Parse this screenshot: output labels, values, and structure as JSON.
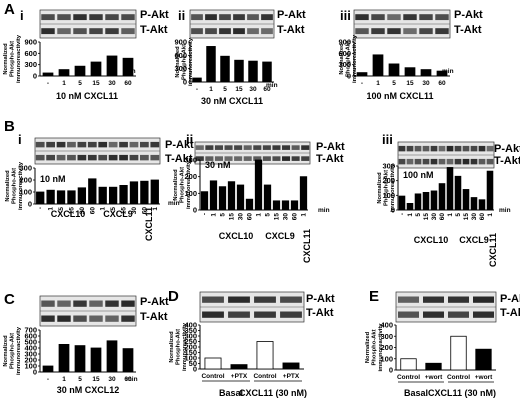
{
  "blot_labels": {
    "phospho": "P-Akt",
    "total": "T-Akt"
  },
  "y_axis_label_lines": [
    "Normalized",
    "Phospho-Akt",
    "immunoreactivity"
  ],
  "unit_label": "min",
  "panels": [
    {
      "letter": "A",
      "numeral": "i",
      "chart_data": {
        "type": "bar",
        "title": "",
        "xlabel": "10 nM CXCL11",
        "ylabel": "Normalized Phospho-Akt immunoreactivity",
        "ylim": [
          0,
          900
        ],
        "yticks": [
          0,
          300,
          600,
          900
        ],
        "categories": [
          "-",
          "1",
          "5",
          "15",
          "30",
          "60"
        ],
        "values": [
          80,
          170,
          260,
          370,
          530,
          470
        ],
        "fill": "black"
      }
    },
    {
      "letter": "",
      "numeral": "ii",
      "chart_data": {
        "type": "bar",
        "title": "",
        "xlabel": "30 nM CXCL11",
        "ylabel": "Normalized Phospho-Akt immunoreactivity",
        "ylim": [
          0,
          900
        ],
        "yticks": [
          0,
          300,
          600,
          900
        ],
        "categories": [
          "-",
          "1",
          "5",
          "15",
          "30",
          "60"
        ],
        "values": [
          90,
          800,
          580,
          490,
          470,
          450
        ],
        "fill": "black"
      }
    },
    {
      "letter": "",
      "numeral": "iii",
      "chart_data": {
        "type": "bar",
        "title": "",
        "xlabel": "100 nM CXCL11",
        "ylabel": "Normalized Phospho-Akt immunoreactivity",
        "ylim": [
          0,
          900
        ],
        "yticks": [
          0,
          300,
          600,
          900
        ],
        "categories": [
          "-",
          "1",
          "5",
          "15",
          "30",
          "60"
        ],
        "values": [
          90,
          560,
          320,
          220,
          170,
          130
        ],
        "fill": "black"
      }
    },
    {
      "letter": "B",
      "numeral": "i",
      "conc_label": "10 nM",
      "chart_data": {
        "type": "bar",
        "title": "",
        "ylabel": "Normalized Phospho-Akt immunoreactivity",
        "ylim": [
          0,
          300
        ],
        "yticks": [
          0,
          100,
          200,
          300
        ],
        "categories": [
          "-",
          "1",
          "5",
          "15",
          "30",
          "60",
          "1",
          "5",
          "15",
          "30",
          "60",
          "1"
        ],
        "group_labels": [
          "CXCL10",
          "CXCL9",
          "CXCL11"
        ],
        "values": [
          100,
          115,
          110,
          110,
          135,
          210,
          140,
          140,
          155,
          185,
          190,
          200
        ],
        "fill": "black"
      }
    },
    {
      "letter": "",
      "numeral": "ii",
      "conc_label": "30 nM",
      "chart_data": {
        "type": "bar",
        "title": "",
        "ylabel": "Normalized Phospho-Akt immunoreactivity",
        "ylim": [
          0,
          300
        ],
        "yticks": [
          0,
          100,
          200,
          300
        ],
        "categories": [
          "-",
          "1",
          "5",
          "15",
          "30",
          "60",
          "1",
          "5",
          "15",
          "30",
          "60",
          "1"
        ],
        "group_labels": [
          "CXCL10",
          "CXCL9",
          "CXCL11"
        ],
        "values": [
          110,
          175,
          140,
          170,
          150,
          65,
          300,
          150,
          55,
          55,
          55,
          200
        ],
        "fill": "black"
      }
    },
    {
      "letter": "",
      "numeral": "iii",
      "conc_label": "100 nM",
      "chart_data": {
        "type": "bar",
        "title": "",
        "ylabel": "Normalized Phospho-Akt immunoreactivity",
        "ylim": [
          0,
          300
        ],
        "yticks": [
          0,
          100,
          200,
          300
        ],
        "categories": [
          "-",
          "1",
          "5",
          "15",
          "30",
          "60",
          "1",
          "5",
          "15",
          "30",
          "60",
          "1"
        ],
        "group_labels": [
          "CXCL10",
          "CXCL9",
          "CXCL11"
        ],
        "values": [
          95,
          45,
          110,
          120,
          130,
          180,
          290,
          230,
          140,
          85,
          70,
          265
        ],
        "fill": "black"
      }
    },
    {
      "letter": "C",
      "numeral": "",
      "chart_data": {
        "type": "bar",
        "title": "",
        "xlabel": "30 nM CXCL12",
        "ylabel": "Normalized Phospho-Akt immunoreactivity",
        "ylim": [
          0,
          700
        ],
        "yticks": [
          0,
          100,
          200,
          300,
          400,
          500,
          600,
          700
        ],
        "categories": [
          "-",
          "1",
          "5",
          "15",
          "30",
          "60"
        ],
        "values": [
          100,
          460,
          440,
          400,
          520,
          390
        ],
        "fill": "black"
      }
    },
    {
      "letter": "D",
      "numeral": "",
      "chart_data": {
        "type": "bar",
        "title": "",
        "ylabel": "Normalized Phospho-Akt immunoreactivity",
        "ylim": [
          0,
          400
        ],
        "yticks": [
          0,
          50,
          100,
          150,
          200,
          250,
          300,
          350,
          400
        ],
        "categories": [
          "Control",
          "+PTX",
          "Control",
          "+PTX"
        ],
        "group_labels": [
          "Basal",
          "CXCL11 (30 nM)"
        ],
        "values": [
          100,
          40,
          250,
          55
        ],
        "fills": [
          "white",
          "black",
          "white",
          "black"
        ]
      }
    },
    {
      "letter": "E",
      "numeral": "",
      "chart_data": {
        "type": "bar",
        "title": "",
        "ylabel": "Normalized Phospho-Akt immunoreactivity",
        "ylim": [
          0,
          400
        ],
        "yticks": [
          0,
          100,
          200,
          300,
          400
        ],
        "categories": [
          "Control",
          "+wort",
          "Control",
          "+wort"
        ],
        "group_labels": [
          "Basal",
          "CXCL11 (30 nM)"
        ],
        "values": [
          100,
          60,
          300,
          185
        ],
        "fills": [
          "white",
          "black",
          "white",
          "black"
        ]
      }
    }
  ]
}
